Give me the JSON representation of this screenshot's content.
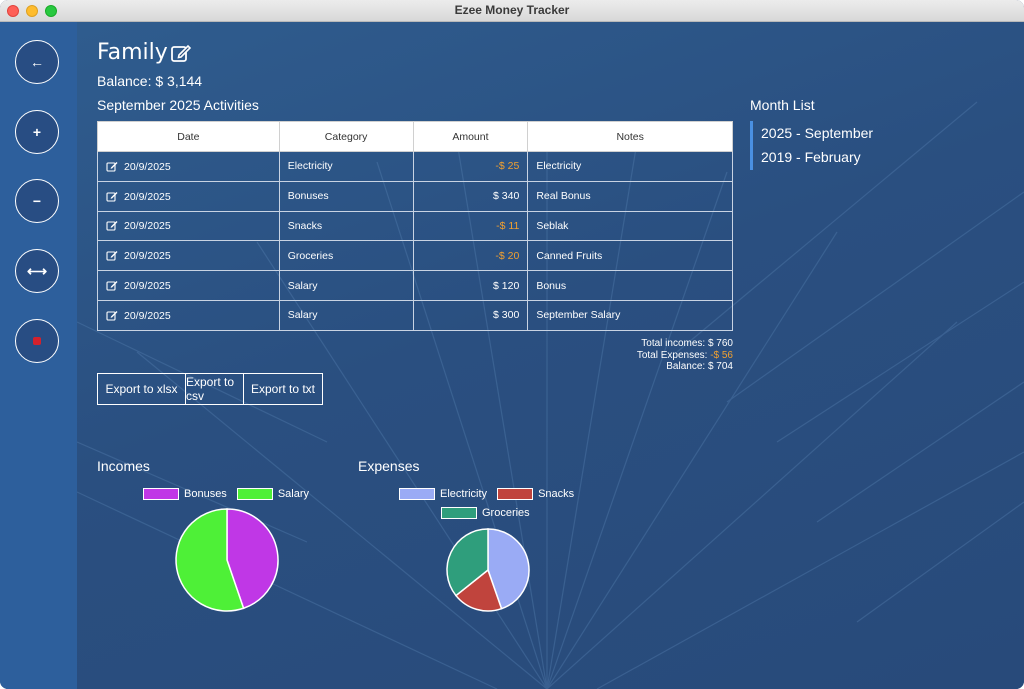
{
  "window": {
    "title": "Ezee Money Tracker"
  },
  "sidebar": {
    "buttons": [
      {
        "name": "back-button",
        "icon": "arrow-left-icon",
        "glyph": "←"
      },
      {
        "name": "add-income-button",
        "icon": "plus-icon",
        "glyph": "+"
      },
      {
        "name": "add-expense-button",
        "icon": "minus-icon",
        "glyph": "−"
      },
      {
        "name": "transfer-button",
        "icon": "double-arrow-icon",
        "glyph": "⟷"
      },
      {
        "name": "record-button",
        "icon": "stop-icon",
        "glyph": ""
      }
    ]
  },
  "header": {
    "group_title": "Family",
    "balance": "Balance: $ 3,144",
    "activities_title": "September 2025 Activities"
  },
  "table": {
    "headers": [
      "Date",
      "Category",
      "Amount",
      "Notes"
    ],
    "rows": [
      {
        "date": "20/9/2025",
        "category": "Electricity",
        "amount": "-$ 25",
        "negative": true,
        "notes": "Electricity"
      },
      {
        "date": "20/9/2025",
        "category": "Bonuses",
        "amount": "$ 340",
        "negative": false,
        "notes": "Real Bonus"
      },
      {
        "date": "20/9/2025",
        "category": "Snacks",
        "amount": "-$ 11",
        "negative": true,
        "notes": "Seblak"
      },
      {
        "date": "20/9/2025",
        "category": "Groceries",
        "amount": "-$ 20",
        "negative": true,
        "notes": "Canned Fruits"
      },
      {
        "date": "20/9/2025",
        "category": "Salary",
        "amount": "$ 120",
        "negative": false,
        "notes": "Bonus"
      },
      {
        "date": "20/9/2025",
        "category": "Salary",
        "amount": "$ 300",
        "negative": false,
        "notes": "September Salary"
      }
    ]
  },
  "totals": {
    "incomes_label": "Total incomes:",
    "incomes_value": "$ 760",
    "expenses_label": "Total Expenses:",
    "expenses_value": "-$ 56",
    "balance_label": "Balance:",
    "balance_value": "$ 704"
  },
  "export": {
    "xlsx": "Export to xlsx",
    "csv": "Export to csv",
    "txt": "Export to txt"
  },
  "month_list": {
    "heading": "Month List",
    "items": [
      "2025 - September",
      "2019 - February"
    ]
  },
  "chart_data": [
    {
      "type": "pie",
      "title": "Incomes",
      "categories": [
        "Bonuses",
        "Salary"
      ],
      "values": [
        340,
        420
      ],
      "colors": [
        "#c037e6",
        "#4ef037"
      ]
    },
    {
      "type": "pie",
      "title": "Expenses",
      "categories": [
        "Electricity",
        "Snacks",
        "Groceries"
      ],
      "values": [
        25,
        11,
        20
      ],
      "colors": [
        "#9aabf5",
        "#c0443d",
        "#2f9e7c"
      ]
    }
  ]
}
